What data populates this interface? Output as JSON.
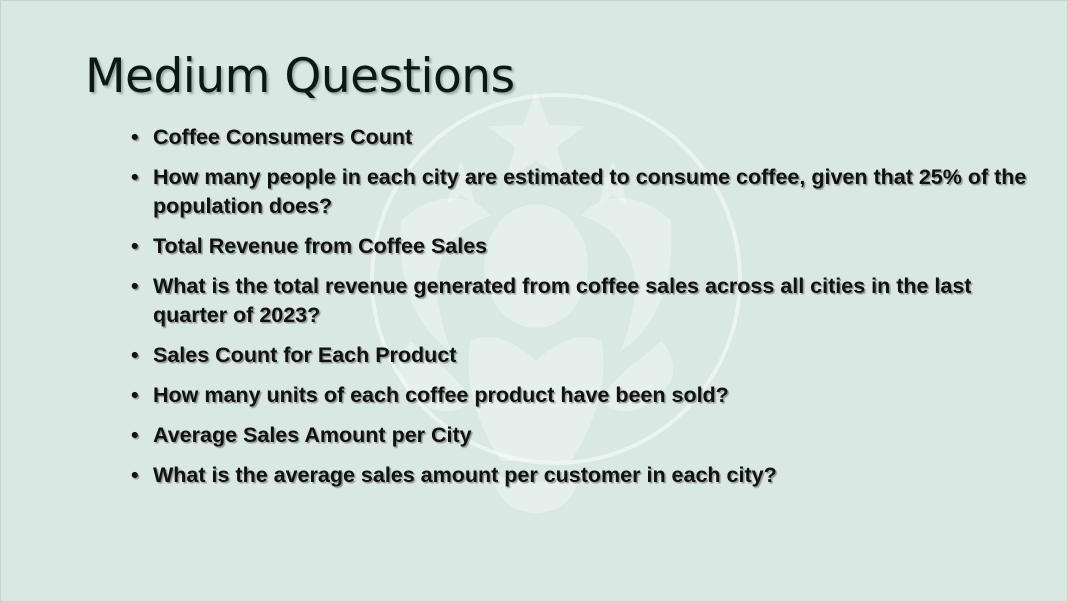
{
  "slide": {
    "title": "Medium Questions",
    "bullet_symbol": "•",
    "bullets": [
      "Coffee Consumers Count",
      "How many people in each city are estimated to consume coffee, given that 25% of the population does?",
      "Total Revenue from Coffee Sales",
      "What is the total revenue generated from coffee sales across all cities in the last quarter of 2023?",
      "Sales Count for Each Product",
      "How many units of each coffee product have been sold?",
      "Average Sales Amount per City",
      "What is the average sales amount per customer in each city?"
    ]
  },
  "theme": {
    "background": "#d9e8e2",
    "watermark_color": "#ffffff",
    "text_color": "#111111"
  },
  "watermark": {
    "icon": "siren-logo-watermark-icon"
  }
}
